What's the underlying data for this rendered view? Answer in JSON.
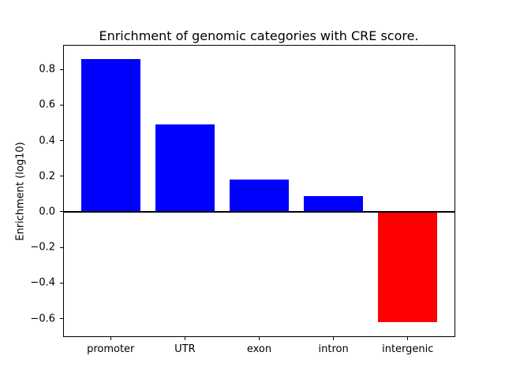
{
  "figure": {
    "background": "#ffffff"
  },
  "chart_data": {
    "type": "bar",
    "title": "Enrichment of genomic categories with CRE score.",
    "xlabel": "",
    "ylabel": "Enrichment (log10)",
    "categories": [
      "promoter",
      "UTR",
      "exon",
      "intron",
      "intergenic"
    ],
    "values": [
      0.86,
      0.49,
      0.18,
      0.09,
      -0.62
    ],
    "bar_colors": [
      "#0000ff",
      "#0000ff",
      "#0000ff",
      "#0000ff",
      "#ff0000"
    ],
    "positive_color": "#0000ff",
    "negative_color": "#ff0000",
    "yticks": [
      0.8,
      0.6,
      0.4,
      0.2,
      0.0,
      -0.2,
      -0.4,
      -0.6
    ],
    "ytick_labels": [
      "0.8",
      "0.6",
      "0.4",
      "0.2",
      "0.0",
      "−0.2",
      "−0.4",
      "−0.6"
    ],
    "ylim": [
      -0.704,
      0.938
    ],
    "xlim": [
      -0.64,
      4.64
    ],
    "bar_width": 0.8,
    "zero_line": {
      "y": 0.0,
      "color": "#000000"
    },
    "grid": false,
    "legend": false,
    "spine_color": "#000000"
  }
}
